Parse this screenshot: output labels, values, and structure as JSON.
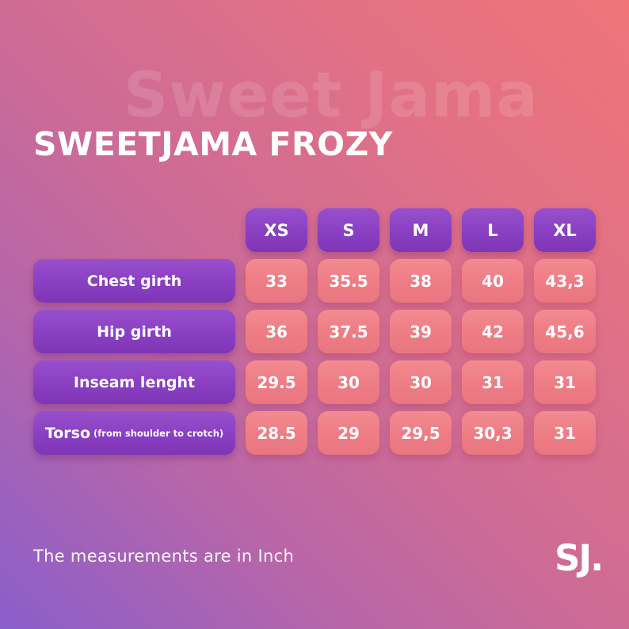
{
  "page": {
    "title": "SWEETJAMA FROZY",
    "watermark": "Sweet Jama",
    "footer_note": "The measurements are in Inch",
    "logo_text": "SJ."
  },
  "chart_data": {
    "type": "table",
    "title": "SWEETJAMA FROZY",
    "unit": "Inch",
    "columns": [
      "XS",
      "S",
      "M",
      "L",
      "XL"
    ],
    "rows": [
      {
        "label": "Chest girth",
        "sublabel": "",
        "values": [
          "33",
          "35.5",
          "38",
          "40",
          "43,3"
        ]
      },
      {
        "label": "Hip girth",
        "sublabel": "",
        "values": [
          "36",
          "37.5",
          "39",
          "42",
          "45,6"
        ]
      },
      {
        "label": "Inseam lenght",
        "sublabel": "",
        "values": [
          "29.5",
          "30",
          "30",
          "31",
          "31"
        ]
      },
      {
        "label": "Torso",
        "sublabel": "(from shoulder to crotch)",
        "values": [
          "28.5",
          "29",
          "29,5",
          "30,3",
          "31"
        ]
      }
    ]
  },
  "colors": {
    "header_cell_purple": "#8a3fc2",
    "value_cell_salmon": "#ef7d85",
    "gradient_bottom_left": "#8a5ecb",
    "gradient_middle_pink": "#cd6b96",
    "gradient_top_right": "#ee7478",
    "text": "#ffffff"
  }
}
